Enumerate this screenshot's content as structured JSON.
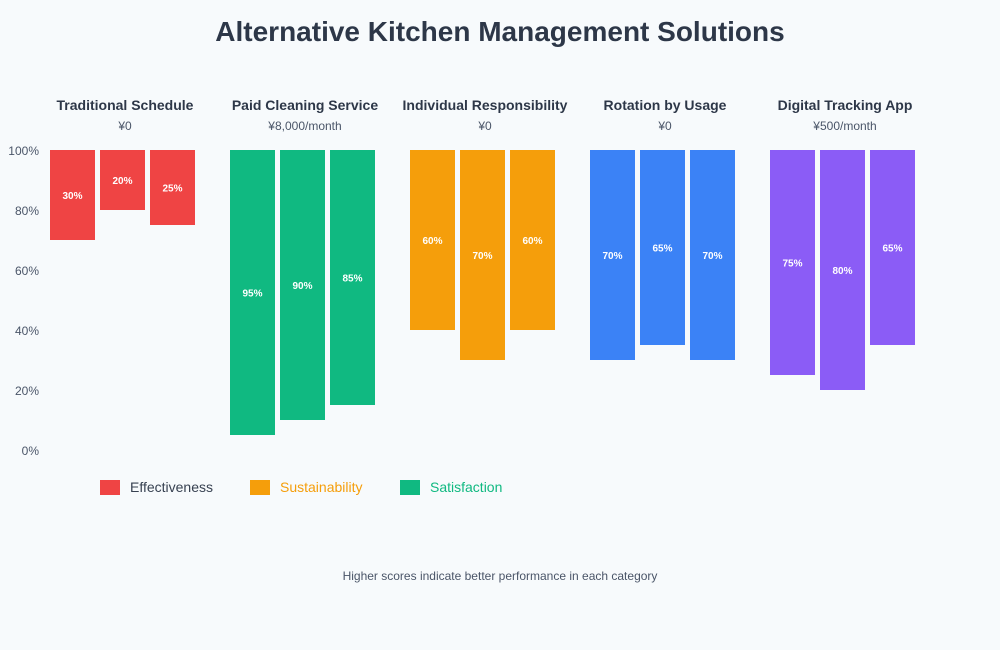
{
  "chart_data": {
    "type": "bar",
    "title": "Alternative Kitchen Management Solutions",
    "footnote": "Higher scores indicate better performance in each category",
    "ylim": [
      0,
      100
    ],
    "yticks": [
      "0%",
      "20%",
      "40%",
      "60%",
      "80%",
      "100%"
    ],
    "legend": {
      "placement": "bottom-left",
      "items": [
        {
          "label": "Effectiveness",
          "color": "#ef4444",
          "text_color": "#374151"
        },
        {
          "label": "Sustainability",
          "color": "#f59e0b",
          "text_color": "#f59e0b"
        },
        {
          "label": "Satisfaction",
          "color": "#10b981",
          "text_color": "#10b981"
        }
      ]
    },
    "groups": [
      {
        "name": "Traditional Schedule",
        "cost": "¥0",
        "color": "#ef4444",
        "values": [
          30,
          20,
          25
        ]
      },
      {
        "name": "Paid Cleaning Service",
        "cost": "¥8,000/month",
        "color": "#10b981",
        "values": [
          95,
          90,
          85
        ]
      },
      {
        "name": "Individual Responsibility",
        "cost": "¥0",
        "color": "#f59e0b",
        "values": [
          60,
          70,
          60
        ]
      },
      {
        "name": "Rotation by Usage",
        "cost": "¥0",
        "color": "#3b82f6",
        "values": [
          70,
          65,
          70
        ]
      },
      {
        "name": "Digital Tracking App",
        "cost": "¥500/month",
        "color": "#8b5cf6",
        "values": [
          75,
          80,
          65
        ]
      }
    ]
  }
}
